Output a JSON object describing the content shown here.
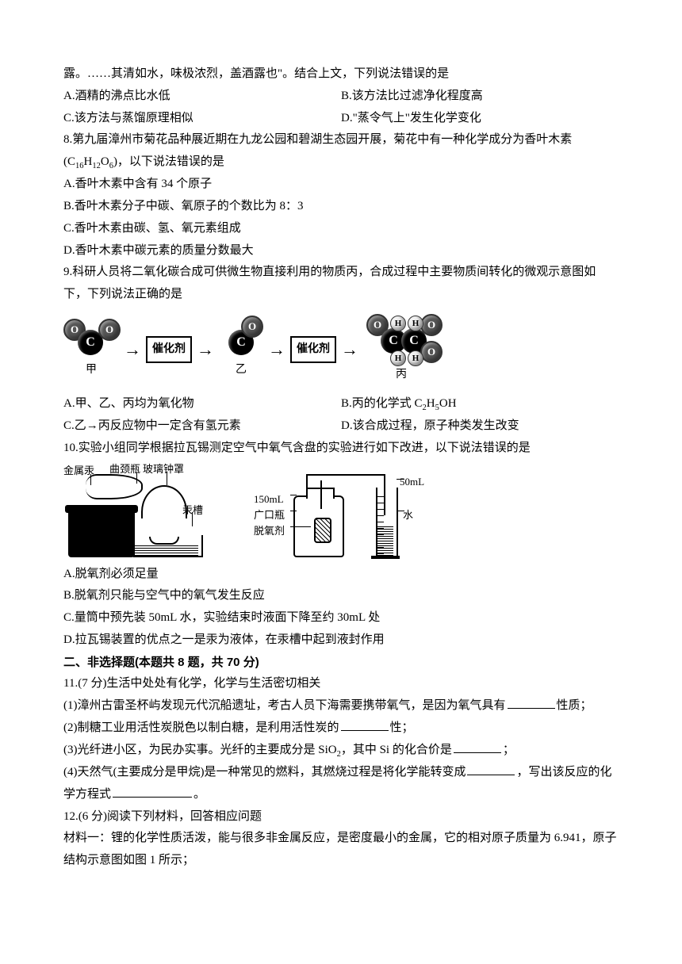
{
  "q7": {
    "intro": "露。……其清如水，味极浓烈，盖酒露也\"。结合上文，下列说法错误的是",
    "opts": {
      "A": "A.酒精的沸点比水低",
      "B": "B.该方法比过滤净化程度高",
      "C": "C.该方法与蒸馏原理相似",
      "D": "D.\"蒸令气上\"发生化学变化"
    }
  },
  "q8": {
    "intro1": "8.第九届漳州市菊花品种展近期在九龙公园和碧湖生态园开展，菊花中有一种化学成分为香叶木素",
    "intro2_prefix": "(C",
    "intro2_sub1": "16",
    "intro2_mid1": "H",
    "intro2_sub2": "12",
    "intro2_mid2": "O",
    "intro2_sub3": "6",
    "intro2_suffix": ")，以下说法错误的是",
    "opts": {
      "A": "A.香叶木素中含有 34 个原子",
      "B": "B.香叶木素分子中碳、氧原子的个数比为 8：3",
      "C": "C.香叶木素由碳、氢、氧元素组成",
      "D": "D.香叶木素中碳元素的质量分数最大"
    }
  },
  "q9": {
    "intro": "9.科研人员将二氧化碳合成可供微生物直接利用的物质丙，合成过程中主要物质间转化的微观示意图如下，下列说法正确的是",
    "dia": {
      "atoms": {
        "C": "C",
        "O": "O",
        "H": "H"
      },
      "catalyst": "催化剂",
      "labels": {
        "jia": "甲",
        "yi": "乙",
        "bing": "丙"
      }
    },
    "opts": {
      "A": "A.甲、乙、丙均为氧化物",
      "B_prefix": "B.丙的化学式 C",
      "B_sub1": "2",
      "B_mid": "H",
      "B_sub2": "5",
      "B_suffix": "OH",
      "C": "C.乙→丙反应物中一定含有氢元素",
      "D": "D.该合成过程，原子种类发生改变"
    }
  },
  "q10": {
    "intro": "10.实验小组同学根据拉瓦锡测定空气中氧气含盘的实验进行如下改进，以下说法错误的是",
    "dia": {
      "left": {
        "mercury": "金属汞",
        "retort": "曲颈瓶",
        "bell": "玻璃钟罩",
        "trough": "汞槽"
      },
      "right": {
        "l150": "150mL",
        "bottle": "广口瓶",
        "deox": "脱氧剂",
        "l50": "50mL",
        "water": "水"
      }
    },
    "opts": {
      "A": "A.脱氧剂必须足量",
      "B": "B.脱氧剂只能与空气中的氧气发生反应",
      "C": "C.量筒中预先装 50mL 水，实验结束时液面下降至约 30mL 处",
      "D": "D.拉瓦锡装置的优点之一是汞为液体，在汞槽中起到液封作用"
    }
  },
  "section2": "二、非选择题(本题共 8 题，共 70 分)",
  "q11": {
    "intro": "11.(7 分)生活中处处有化学，化学与生活密切相关",
    "p1": "(1)漳州古雷圣杯屿发现元代沉船遗址，考古人员下海需要携带氧气，是因为氧气具有",
    "p1s": "性质；",
    "p2": "(2)制糖工业用活性炭脱色以制白糖，是利用活性炭的",
    "p2s": "性；",
    "p3a": "(3)光纤进小区，为民办实事。光纤的主要成分是 SiO",
    "p3sub": "2",
    "p3b": "，其中 Si 的化合价是",
    "p3s": "；",
    "p4a": "(4)天然气(主要成分是甲烷)是一种常见的燃料，其燃烧过程是将化学能转变成",
    "p4b": "，写出该反应的化学方程式",
    "p4s": "。"
  },
  "q12": {
    "intro": "12.(6 分)阅读下列材料，回答相应问题",
    "m1": "材料一：锂的化学性质活泼，能与很多非金属反应，是密度最小的金属，它的相对原子质量为 6.941，原子结构示意图如图 1 所示；"
  }
}
